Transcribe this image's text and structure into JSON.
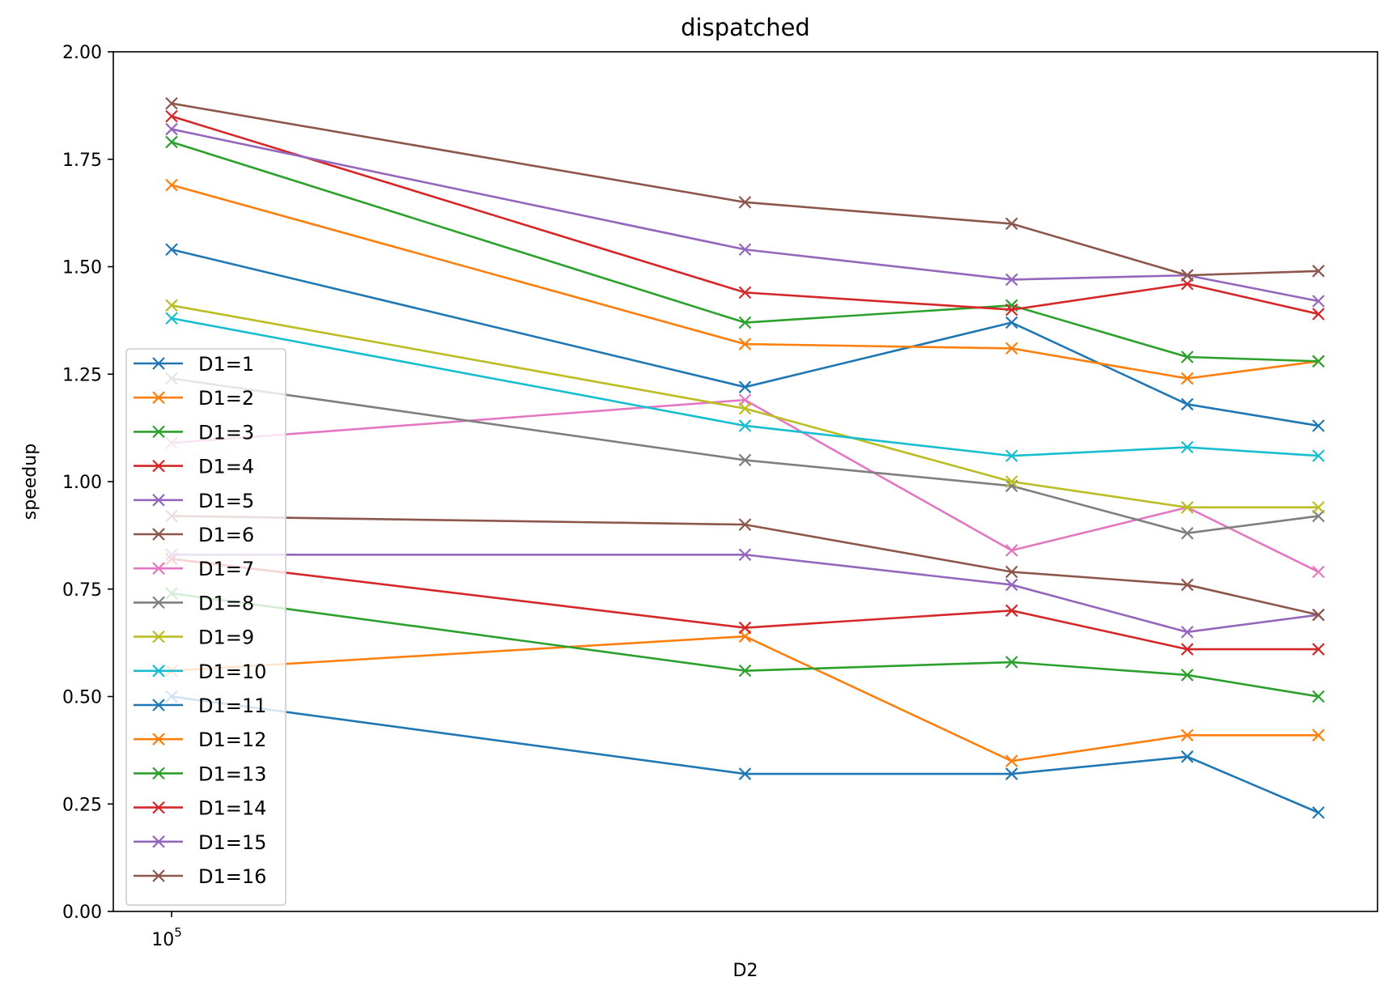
{
  "chart_data": {
    "type": "line",
    "title": "dispatched",
    "xlabel": "D2",
    "ylabel": "speedup",
    "x_scale": "log",
    "x_tick_label": {
      "base": "10",
      "exponent": "5"
    },
    "x": [
      100000,
      300000,
      500000,
      700000,
      900000
    ],
    "ylim": [
      0,
      2
    ],
    "yticks": [
      "0.00",
      "0.25",
      "0.50",
      "0.75",
      "1.00",
      "1.25",
      "1.50",
      "1.75",
      "2.00"
    ],
    "marker": "x",
    "grid": false,
    "legend_position": "lower left",
    "series": [
      {
        "name": "D1=1",
        "color": "#1f77b4",
        "values": [
          1.54,
          1.22,
          1.37,
          1.18,
          1.13
        ]
      },
      {
        "name": "D1=2",
        "color": "#ff7f0e",
        "values": [
          1.69,
          1.32,
          1.31,
          1.24,
          1.28
        ]
      },
      {
        "name": "D1=3",
        "color": "#2ca02c",
        "values": [
          1.79,
          1.37,
          1.41,
          1.29,
          1.28
        ]
      },
      {
        "name": "D1=4",
        "color": "#d62728",
        "values": [
          1.85,
          1.44,
          1.4,
          1.46,
          1.39
        ]
      },
      {
        "name": "D1=5",
        "color": "#9467bd",
        "values": [
          1.82,
          1.54,
          1.47,
          1.48,
          1.42
        ]
      },
      {
        "name": "D1=6",
        "color": "#8c564b",
        "values": [
          1.88,
          1.65,
          1.6,
          1.48,
          1.49
        ]
      },
      {
        "name": "D1=7",
        "color": "#e377c2",
        "values": [
          1.09,
          1.19,
          0.84,
          0.94,
          0.79
        ]
      },
      {
        "name": "D1=8",
        "color": "#7f7f7f",
        "values": [
          1.24,
          1.05,
          0.99,
          0.88,
          0.92
        ]
      },
      {
        "name": "D1=9",
        "color": "#bcbd22",
        "values": [
          1.41,
          1.17,
          1.0,
          0.94,
          0.94
        ]
      },
      {
        "name": "D1=10",
        "color": "#17becf",
        "values": [
          1.38,
          1.13,
          1.06,
          1.08,
          1.06
        ]
      },
      {
        "name": "D1=11",
        "color": "#1f77b4",
        "values": [
          0.5,
          0.32,
          0.32,
          0.36,
          0.23
        ]
      },
      {
        "name": "D1=12",
        "color": "#ff7f0e",
        "values": [
          0.56,
          0.64,
          0.35,
          0.41,
          0.41
        ]
      },
      {
        "name": "D1=13",
        "color": "#2ca02c",
        "values": [
          0.74,
          0.56,
          0.58,
          0.55,
          0.5
        ]
      },
      {
        "name": "D1=14",
        "color": "#d62728",
        "values": [
          0.82,
          0.66,
          0.7,
          0.61,
          0.61
        ]
      },
      {
        "name": "D1=15",
        "color": "#9467bd",
        "values": [
          0.83,
          0.83,
          0.76,
          0.65,
          0.69
        ]
      },
      {
        "name": "D1=16",
        "color": "#8c564b",
        "values": [
          0.92,
          0.9,
          0.79,
          0.76,
          0.69
        ]
      }
    ]
  }
}
